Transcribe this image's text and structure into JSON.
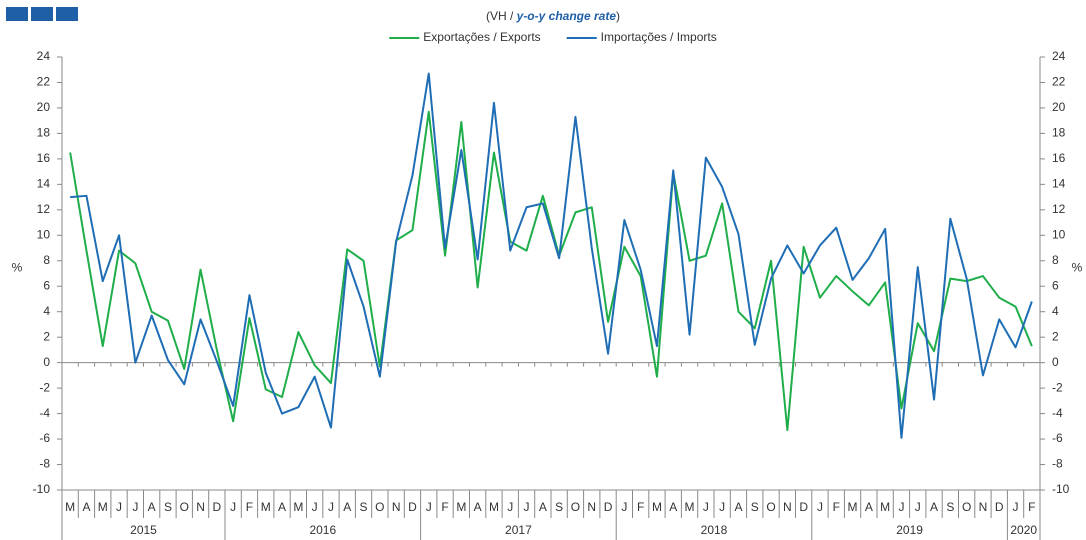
{
  "chart_data": {
    "type": "line",
    "title": [
      "(VH / ",
      "y-o-y change rate",
      ")"
    ],
    "y_label": "%",
    "y2_label": "%",
    "legend": "top",
    "categories": [
      "M",
      "A",
      "M",
      "J",
      "J",
      "A",
      "S",
      "O",
      "N",
      "D",
      "J",
      "F",
      "M",
      "A",
      "M",
      "J",
      "J",
      "A",
      "S",
      "O",
      "N",
      "D",
      "J",
      "F",
      "M",
      "A",
      "M",
      "J",
      "J",
      "A",
      "S",
      "O",
      "N",
      "D",
      "J",
      "F",
      "M",
      "A",
      "M",
      "J",
      "J",
      "A",
      "S",
      "O",
      "N",
      "D",
      "J",
      "F",
      "M",
      "A",
      "M",
      "J",
      "J",
      "A",
      "S",
      "O",
      "N",
      "D",
      "J",
      "F"
    ],
    "years": [
      "2015",
      "2016",
      "2017",
      "2018",
      "2019",
      "2020"
    ],
    "series": [
      {
        "name": "Exportações / Exports",
        "color": "#1fae4a",
        "values": [
          16.5,
          8.8,
          1.3,
          8.8,
          7.8,
          4.0,
          3.3,
          -0.5,
          7.3,
          1.0,
          -4.6,
          3.5,
          -2.1,
          -2.7,
          2.4,
          -0.2,
          -1.6,
          8.9,
          8.0,
          -0.3,
          9.6,
          10.4,
          19.7,
          8.4,
          18.9,
          5.9,
          16.5,
          9.5,
          8.8,
          13.1,
          8.4,
          11.8,
          12.2,
          3.2,
          9.1,
          6.8,
          -1.1,
          14.9,
          8.0,
          8.4,
          12.5,
          4.0,
          2.7,
          8.0,
          -5.3,
          9.1,
          5.1,
          6.8,
          5.6,
          4.5,
          6.3,
          -3.6,
          3.1,
          0.9,
          6.6,
          6.4,
          6.8,
          5.1,
          4.4,
          1.3
        ]
      },
      {
        "name": "Importações / Imports",
        "color": "#1f6eb5",
        "values": [
          13.0,
          13.1,
          6.4,
          10.0,
          0.0,
          3.7,
          0.2,
          -1.7,
          3.4,
          0.1,
          -3.4,
          5.3,
          -0.8,
          -4.0,
          -3.5,
          -1.1,
          -5.1,
          8.1,
          4.4,
          -1.1,
          9.5,
          14.7,
          22.7,
          9.0,
          16.7,
          8.1,
          20.4,
          8.8,
          12.2,
          12.5,
          8.2,
          19.3,
          9.0,
          0.7,
          11.2,
          7.3,
          1.3,
          15.1,
          2.2,
          16.1,
          13.8,
          10.1,
          1.4,
          6.6,
          9.2,
          7.0,
          9.2,
          10.6,
          6.5,
          8.2,
          10.5,
          -5.9,
          7.5,
          -2.9,
          11.3,
          6.6,
          -1.0,
          3.4,
          1.2,
          4.8
        ]
      }
    ],
    "ylim": [
      -10,
      24
    ],
    "yticks": [
      -10,
      -8,
      -6,
      -4,
      -2,
      0,
      2,
      4,
      6,
      8,
      10,
      12,
      14,
      16,
      18,
      20,
      22,
      24
    ],
    "y2lim": [
      -10,
      24
    ],
    "y2ticks": [
      -10,
      -8,
      -6,
      -4,
      -2,
      0,
      2,
      4,
      6,
      8,
      10,
      12,
      14,
      16,
      18,
      20,
      22,
      24
    ],
    "grid": false
  }
}
